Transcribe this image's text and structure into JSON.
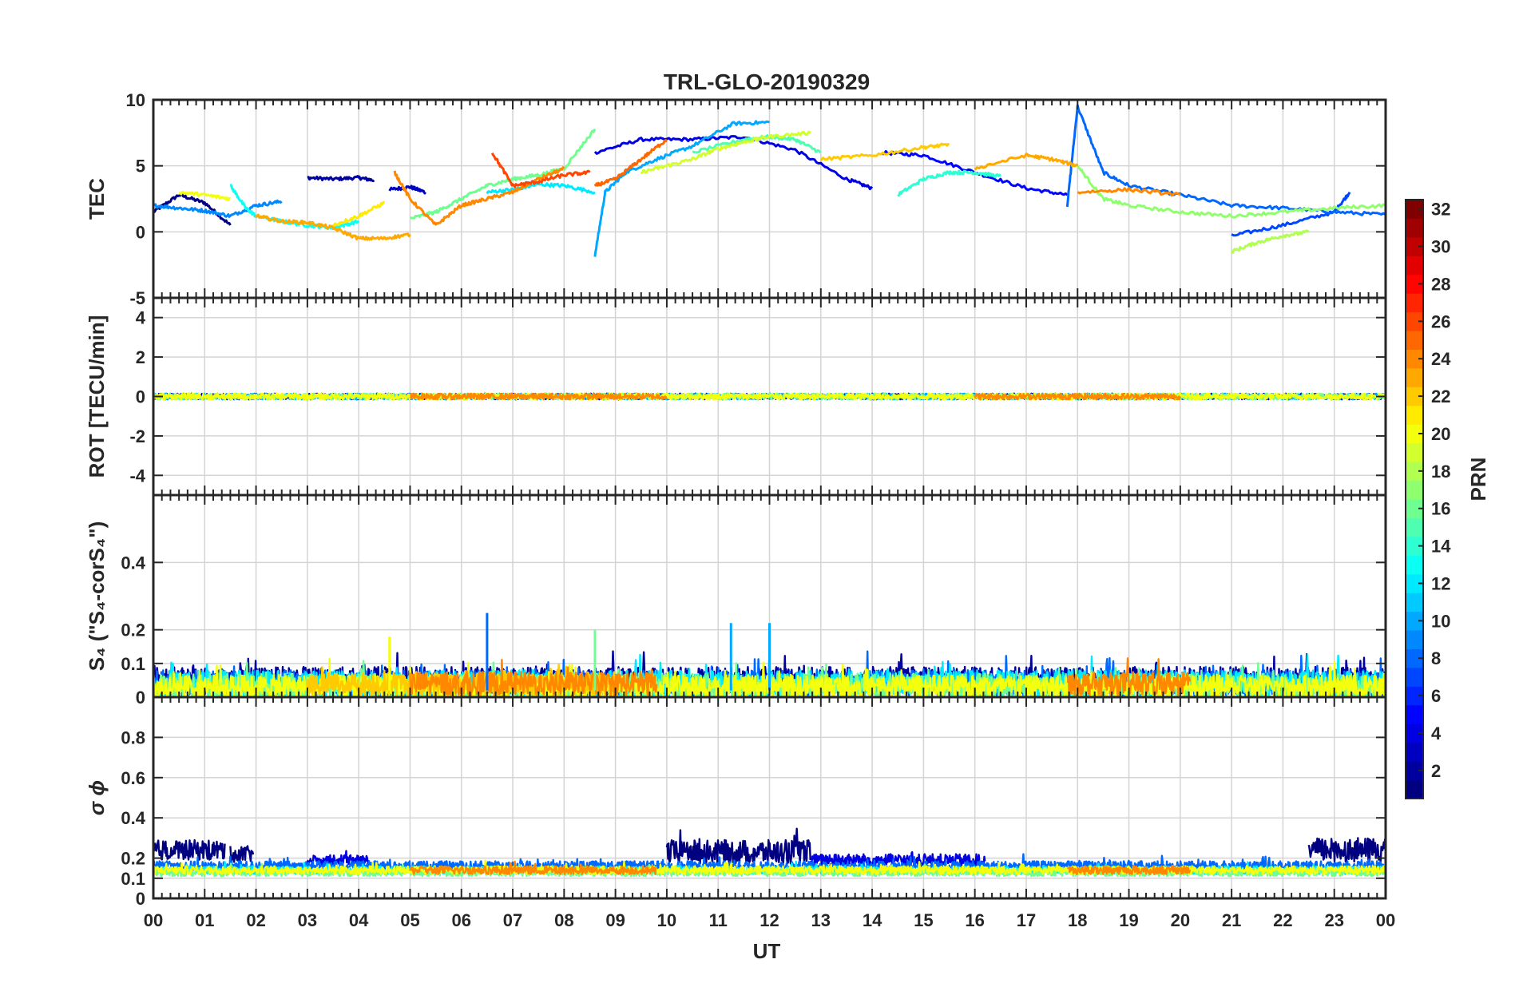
{
  "figure": {
    "title": "TRL-GLO-20190329",
    "xlabel": "UT",
    "x_tick_labels": [
      "00",
      "01",
      "02",
      "03",
      "04",
      "05",
      "06",
      "07",
      "08",
      "09",
      "10",
      "11",
      "12",
      "13",
      "14",
      "15",
      "16",
      "17",
      "18",
      "19",
      "20",
      "21",
      "22",
      "23",
      "00"
    ]
  },
  "colorbar": {
    "label": "PRN",
    "range": [
      1,
      32
    ],
    "colormap": "jet",
    "tick_values": [
      2,
      4,
      6,
      8,
      10,
      12,
      14,
      16,
      18,
      20,
      22,
      24,
      26,
      28,
      30,
      32
    ],
    "tick_labels": [
      "2",
      "4",
      "6",
      "8",
      "10",
      "12",
      "14",
      "16",
      "18",
      "20",
      "22",
      "24",
      "26",
      "28",
      "30",
      "32"
    ]
  },
  "chart_data": [
    {
      "type": "line",
      "panel": "tec",
      "ylabel": "TEC",
      "ylim": [
        -5,
        10
      ],
      "y_ticks": [
        -5,
        0,
        5,
        10
      ],
      "y_tick_labels": [
        "-5",
        "0",
        "5",
        "10"
      ],
      "xlim": [
        0,
        24
      ],
      "grid": true,
      "series": [
        {
          "prn": 1,
          "x": [
            0.0,
            0.5,
            1.0,
            1.5
          ],
          "y": [
            1.5,
            2.8,
            2.2,
            0.5
          ]
        },
        {
          "prn": 2,
          "x": [
            3.0,
            3.5,
            4.0,
            4.3
          ],
          "y": [
            4.1,
            4.0,
            4.1,
            3.9
          ]
        },
        {
          "prn": 3,
          "x": [
            4.6,
            5.0,
            5.3
          ],
          "y": [
            3.2,
            3.4,
            3.0
          ]
        },
        {
          "prn": 4,
          "x": [
            8.6,
            9.5,
            10.5,
            11.5,
            12.5,
            13.5,
            14.0
          ],
          "y": [
            6.0,
            7.0,
            7.0,
            7.2,
            6.2,
            4.0,
            3.3
          ]
        },
        {
          "prn": 5,
          "x": [
            14.2,
            15.0,
            16.0,
            17.0,
            17.8
          ],
          "y": [
            6.0,
            5.8,
            4.5,
            3.3,
            2.8
          ]
        },
        {
          "prn": 7,
          "x": [
            21.0,
            22.0,
            23.0,
            23.3
          ],
          "y": [
            -0.3,
            0.5,
            1.5,
            3.0
          ]
        },
        {
          "prn": 8,
          "x": [
            17.8,
            18.0,
            18.5,
            19.0,
            20.0,
            21.0,
            22.0,
            23.0,
            24.0
          ],
          "y": [
            2.0,
            9.5,
            4.5,
            3.5,
            2.8,
            2.0,
            1.8,
            1.5,
            1.3
          ]
        },
        {
          "prn": 9,
          "x": [
            0.0,
            0.5,
            1.0,
            1.5,
            2.0,
            2.5
          ],
          "y": [
            2.0,
            1.8,
            1.6,
            1.2,
            2.0,
            2.3
          ]
        },
        {
          "prn": 10,
          "x": [
            8.6,
            8.8,
            9.2,
            9.8,
            10.5,
            11.3,
            12.0
          ],
          "y": [
            -1.8,
            3.0,
            4.5,
            5.5,
            6.5,
            8.2,
            8.3
          ]
        },
        {
          "prn": 12,
          "x": [
            6.5,
            7.0,
            7.5,
            8.0,
            8.6
          ],
          "y": [
            3.0,
            3.2,
            3.6,
            3.5,
            3.0
          ]
        },
        {
          "prn": 13,
          "x": [
            1.5,
            1.8,
            2.0,
            2.5,
            3.0,
            3.5,
            4.0
          ],
          "y": [
            3.5,
            1.8,
            1.2,
            0.8,
            0.5,
            0.3,
            0.8
          ]
        },
        {
          "prn": 14,
          "x": [
            14.5,
            15.0,
            15.5,
            16.0,
            16.5
          ],
          "y": [
            2.8,
            4.0,
            4.5,
            4.5,
            4.2
          ]
        },
        {
          "prn": 15,
          "x": [
            10.5,
            11.5,
            12.0,
            12.5,
            13.0
          ],
          "y": [
            6.0,
            7.0,
            7.2,
            7.0,
            6.0
          ]
        },
        {
          "prn": 16,
          "x": [
            5.0,
            5.5,
            6.0,
            6.5,
            7.0,
            7.5,
            8.0,
            8.6
          ],
          "y": [
            1.0,
            1.5,
            2.5,
            3.5,
            4.0,
            4.3,
            4.8,
            7.8
          ]
        },
        {
          "prn": 17,
          "x": [
            18.0,
            18.5,
            19.0,
            20.0,
            21.0,
            22.0,
            23.0,
            24.0
          ],
          "y": [
            5.0,
            2.5,
            2.0,
            1.5,
            1.2,
            1.5,
            1.8,
            2.0
          ]
        },
        {
          "prn": 18,
          "x": [
            21.0,
            21.5,
            22.0,
            22.5
          ],
          "y": [
            -1.5,
            -0.8,
            -0.3,
            0.0
          ]
        },
        {
          "prn": 19,
          "x": [
            9.5,
            10.0,
            10.5,
            11.0,
            11.5,
            12.0,
            12.8
          ],
          "y": [
            4.5,
            5.0,
            5.5,
            6.3,
            6.8,
            7.2,
            7.5
          ]
        },
        {
          "prn": 20,
          "x": [
            0.5,
            1.0,
            1.5
          ],
          "y": [
            3.0,
            2.8,
            2.5
          ]
        },
        {
          "prn": 21,
          "x": [
            3.5,
            4.0,
            4.5
          ],
          "y": [
            0.5,
            1.2,
            2.2
          ]
        },
        {
          "prn": 22,
          "x": [
            13.0,
            14.0,
            15.0,
            15.5
          ],
          "y": [
            5.5,
            5.8,
            6.4,
            6.6
          ]
        },
        {
          "prn": 23,
          "x": [
            2.0,
            2.5,
            3.0,
            3.5,
            4.0,
            4.5,
            5.0
          ],
          "y": [
            1.2,
            0.8,
            0.7,
            0.3,
            -0.5,
            -0.5,
            -0.2
          ]
        },
        {
          "prn": 24,
          "x": [
            4.7,
            5.0,
            5.5,
            6.0,
            6.5,
            7.0,
            7.5,
            8.0
          ],
          "y": [
            4.5,
            2.5,
            0.5,
            2.0,
            2.5,
            3.0,
            4.0,
            4.8
          ]
        },
        {
          "prn": 25,
          "x": [
            8.6,
            9.0,
            9.5,
            10.0
          ],
          "y": [
            3.5,
            4.0,
            5.5,
            7.0
          ]
        },
        {
          "prn": 26,
          "x": [
            6.6,
            7.0,
            7.5,
            8.0,
            8.5
          ],
          "y": [
            6.0,
            3.5,
            3.8,
            4.3,
            4.5
          ]
        },
        {
          "prn": 23,
          "x": [
            16.0,
            17.0,
            17.5,
            18.0
          ],
          "y": [
            4.8,
            5.8,
            5.5,
            5.0
          ]
        },
        {
          "prn": 24,
          "x": [
            18.0,
            19.0,
            20.0
          ],
          "y": [
            3.0,
            3.2,
            2.8
          ]
        }
      ]
    },
    {
      "type": "line",
      "panel": "rot",
      "ylabel": "ROT [TECU/min]",
      "ylim": [
        -5,
        5
      ],
      "y_ticks": [
        -4,
        -2,
        0,
        2,
        4
      ],
      "y_tick_labels": [
        "-4",
        "-2",
        "0",
        "2",
        "4"
      ],
      "xlim": [
        0,
        24
      ],
      "grid": true,
      "noise_amplitude": 0.25,
      "series": [
        {
          "prn": 2,
          "x_range": [
            0.0,
            24.0
          ]
        },
        {
          "prn": 10,
          "x_range": [
            0.0,
            24.0
          ]
        },
        {
          "prn": 16,
          "x_range": [
            0.0,
            24.0
          ]
        },
        {
          "prn": 20,
          "x_range": [
            0.0,
            24.0
          ]
        },
        {
          "prn": 24,
          "x_range": [
            5.0,
            10.0
          ]
        },
        {
          "prn": 24,
          "x_range": [
            16.0,
            20.0
          ]
        }
      ]
    },
    {
      "type": "line",
      "panel": "s4",
      "ylabel": "S₄ (\"S₄-corS₄\")",
      "ylim": [
        0,
        0.6
      ],
      "y_ticks": [
        0,
        0.1,
        0.2,
        0.4
      ],
      "y_tick_labels": [
        "0",
        "0.1",
        "0.2",
        "0.4"
      ],
      "xlim": [
        0,
        24
      ],
      "grid": true,
      "series": [
        {
          "prn": 2,
          "x_range": [
            0.0,
            24.0
          ],
          "baseline": 0.05,
          "noise": 0.04
        },
        {
          "prn": 8,
          "x_range": [
            0.0,
            24.0
          ],
          "baseline": 0.04,
          "noise": 0.04
        },
        {
          "prn": 12,
          "x_range": [
            0.0,
            24.0
          ],
          "baseline": 0.04,
          "noise": 0.04
        },
        {
          "prn": 16,
          "x_range": [
            0.0,
            24.0
          ],
          "baseline": 0.03,
          "noise": 0.04
        },
        {
          "prn": 20,
          "x_range": [
            0.0,
            24.0
          ],
          "baseline": 0.03,
          "noise": 0.035
        },
        {
          "prn": 22,
          "x_range": [
            3.0,
            9.0
          ],
          "baseline": 0.04,
          "noise": 0.035
        },
        {
          "prn": 24,
          "x_range": [
            5.0,
            9.8
          ],
          "baseline": 0.04,
          "noise": 0.035
        },
        {
          "prn": 24,
          "x_range": [
            17.8,
            20.2
          ],
          "baseline": 0.04,
          "noise": 0.035
        }
      ],
      "spikes": [
        {
          "prn": 8,
          "x": 6.5,
          "y": 0.25
        },
        {
          "prn": 10,
          "x": 11.25,
          "y": 0.22
        },
        {
          "prn": 10,
          "x": 12.0,
          "y": 0.22
        },
        {
          "prn": 16,
          "x": 8.6,
          "y": 0.2
        },
        {
          "prn": 20,
          "x": 4.6,
          "y": 0.18
        }
      ]
    },
    {
      "type": "line",
      "panel": "sigma",
      "ylabel": "σ ϕ",
      "ylim": [
        0,
        1
      ],
      "y_ticks": [
        0,
        0.1,
        0.2,
        0.4,
        0.6,
        0.8
      ],
      "y_tick_labels": [
        "0",
        "0.1",
        "0.2",
        "0.4",
        "0.6",
        "0.8"
      ],
      "xlim": [
        0,
        24
      ],
      "grid": true,
      "series": [
        {
          "prn": 1,
          "x_range": [
            0.0,
            1.4
          ],
          "baseline": 0.24,
          "noise": 0.05
        },
        {
          "prn": 1,
          "x_range": [
            1.5,
            1.95
          ],
          "baseline": 0.22,
          "noise": 0.04
        },
        {
          "prn": 1,
          "x_range": [
            10.0,
            12.8
          ],
          "baseline": 0.23,
          "noise": 0.06
        },
        {
          "prn": 1,
          "x_range": [
            22.5,
            24.0
          ],
          "baseline": 0.24,
          "noise": 0.06
        },
        {
          "prn": 4,
          "x_range": [
            3.0,
            4.2
          ],
          "baseline": 0.19,
          "noise": 0.025
        },
        {
          "prn": 4,
          "x_range": [
            12.8,
            16.2
          ],
          "baseline": 0.19,
          "noise": 0.03
        },
        {
          "prn": 8,
          "x_range": [
            0.0,
            24.0
          ],
          "baseline": 0.16,
          "noise": 0.025
        },
        {
          "prn": 12,
          "x_range": [
            0.0,
            24.0
          ],
          "baseline": 0.14,
          "noise": 0.02
        },
        {
          "prn": 16,
          "x_range": [
            0.0,
            24.0
          ],
          "baseline": 0.13,
          "noise": 0.02
        },
        {
          "prn": 20,
          "x_range": [
            0.0,
            24.0
          ],
          "baseline": 0.14,
          "noise": 0.02
        },
        {
          "prn": 24,
          "x_range": [
            5.0,
            9.8
          ],
          "baseline": 0.14,
          "noise": 0.02
        },
        {
          "prn": 24,
          "x_range": [
            17.8,
            20.2
          ],
          "baseline": 0.14,
          "noise": 0.02
        }
      ]
    }
  ]
}
